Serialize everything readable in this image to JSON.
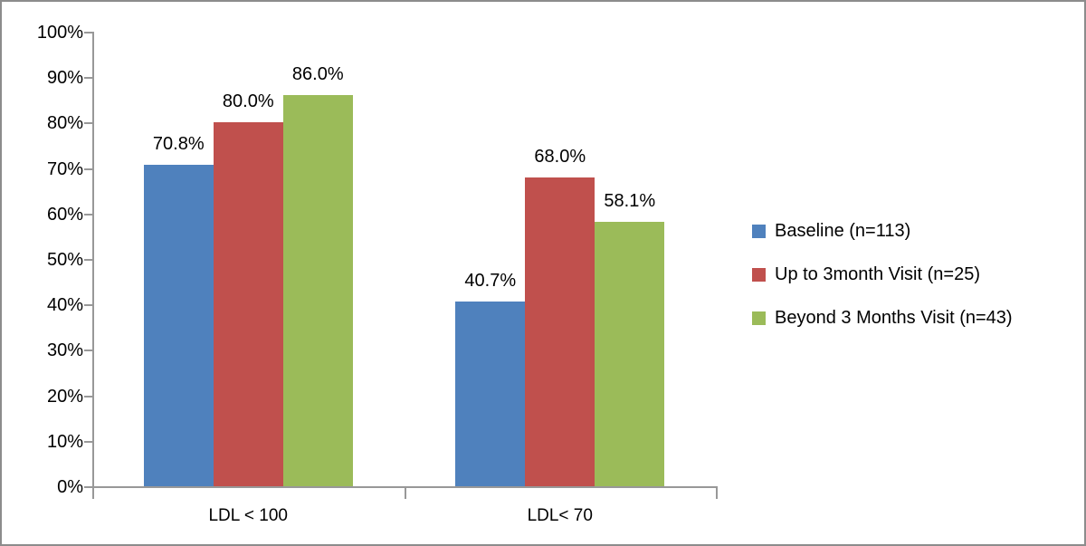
{
  "frame": {
    "background": "#ffffff",
    "border_color": "#8c8c8c",
    "axis_color": "#989898",
    "text_color": "#000000"
  },
  "chart_data": {
    "type": "bar",
    "title": "",
    "xlabel": "",
    "ylabel": "",
    "categories": [
      "LDL < 100",
      "LDL< 70"
    ],
    "series": [
      {
        "name": "Baseline (n=113)",
        "color": "#4F81BD",
        "values": [
          70.8,
          40.7
        ]
      },
      {
        "name": "Up to 3month Visit (n=25)",
        "color": "#C0504D",
        "values": [
          80.0,
          68.0
        ]
      },
      {
        "name": "Beyond 3 Months Visit (n=43)",
        "color": "#9BBB59",
        "values": [
          86.0,
          58.1
        ]
      }
    ],
    "data_labels": [
      [
        "70.8%",
        "80.0%",
        "86.0%"
      ],
      [
        "40.7%",
        "68.0%",
        "58.1%"
      ]
    ],
    "ylim": [
      0,
      100
    ],
    "y_ticks": [
      "0%",
      "10%",
      "20%",
      "30%",
      "40%",
      "50%",
      "60%",
      "70%",
      "80%",
      "90%",
      "100%"
    ],
    "grid": false,
    "legend_position": "right"
  }
}
